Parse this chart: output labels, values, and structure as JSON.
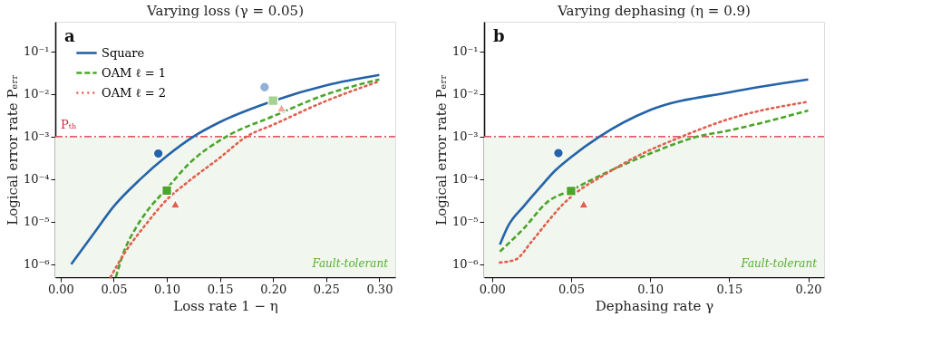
{
  "chart_data": [
    {
      "type": "line",
      "title": "Varying loss  (γ = 0.05)",
      "xlabel": "Loss rate 1 − η",
      "ylabel": "Logical error rate Pₑᵣᵣ",
      "log": "y",
      "grid": false,
      "legend": "top left",
      "xlim": [
        -0.005,
        0.315
      ],
      "xticks": [
        {
          "value": 0,
          "label": "0.00"
        },
        {
          "value": 0.05,
          "label": "0.05"
        },
        {
          "value": 0.1,
          "label": "0.10"
        },
        {
          "value": 0.15,
          "label": "0.15"
        },
        {
          "value": 0.2,
          "label": "0.20"
        },
        {
          "value": 0.25,
          "label": "0.25"
        },
        {
          "value": 0.3,
          "label": "0.30"
        }
      ],
      "ylim": [
        5e-07,
        0.5
      ],
      "yticks": [
        {
          "value": 1e-06,
          "label": "10⁻⁶"
        },
        {
          "value": 1e-05,
          "label": "10⁻⁵"
        },
        {
          "value": 0.0001,
          "label": "10⁻⁴"
        },
        {
          "value": 0.001,
          "label": "10⁻³"
        },
        {
          "value": 0.01,
          "label": "10⁻²"
        },
        {
          "value": 0.1,
          "label": "10⁻¹"
        }
      ],
      "annotations": [
        "a"
      ],
      "ref_lines": [
        {
          "axis": "y",
          "value": 0.001,
          "label": "Pₜₕ",
          "color": "#d62839",
          "line_style": "dashdot"
        }
      ],
      "bands": [
        {
          "axis": "y",
          "from": 5e-07,
          "to": 0.001,
          "label": "Fault-tolerant",
          "color": "#f1f6ee"
        }
      ],
      "series": [
        {
          "name": "Square",
          "type": "line",
          "color": "#2463a8",
          "line_style": "solid",
          "x": [
            0.01,
            0.03,
            0.05,
            0.075,
            0.1,
            0.125,
            0.15,
            0.2,
            0.25,
            0.3
          ],
          "values": [
            1e-06,
            4.8e-06,
            2.3e-05,
            0.0001,
            0.00035,
            0.001,
            0.0022,
            0.0069,
            0.016,
            0.028
          ]
        },
        {
          "name": "OAM ℓ = 1",
          "type": "line",
          "color": "#4aa52a",
          "line_style": "dashed",
          "x": [
            0.052,
            0.06,
            0.07,
            0.08,
            0.1,
            0.12,
            0.156,
            0.2,
            0.25,
            0.3
          ],
          "values": [
            5e-07,
            2.1e-06,
            6.6e-06,
            1.6e-05,
            6e-05,
            0.00022,
            0.001,
            0.003,
            0.0098,
            0.022
          ]
        },
        {
          "name": "OAM ℓ = 2",
          "type": "line",
          "color": "#e0604f",
          "line_style": "dotted",
          "x": [
            0.047,
            0.06,
            0.08,
            0.1,
            0.12,
            0.15,
            0.175,
            0.2,
            0.25,
            0.3
          ],
          "values": [
            5e-07,
            1.8e-06,
            8.5e-06,
            3.3e-05,
            8.7e-05,
            0.00032,
            0.001,
            0.0019,
            0.0069,
            0.02
          ]
        },
        {
          "type": "scatter",
          "marker": "circle",
          "color": "#2463a8",
          "x": [
            0.092
          ],
          "values": [
            0.0004
          ]
        },
        {
          "type": "scatter",
          "marker": "square",
          "color": "#4aa52a",
          "x": [
            0.1
          ],
          "values": [
            5.4e-05
          ]
        },
        {
          "type": "scatter",
          "marker": "triangle",
          "color": "#e0604f",
          "x": [
            0.108
          ],
          "values": [
            2.6e-05
          ]
        },
        {
          "type": "scatter",
          "marker": "circle",
          "color": "#8fb0d8",
          "x": [
            0.192
          ],
          "values": [
            0.0145
          ]
        },
        {
          "type": "scatter",
          "marker": "square",
          "color": "#a3d38f",
          "x": [
            0.2
          ],
          "values": [
            0.007
          ]
        },
        {
          "type": "scatter",
          "marker": "triangle",
          "color": "#eea59a",
          "x": [
            0.208
          ],
          "values": [
            0.0047
          ]
        }
      ]
    },
    {
      "type": "line",
      "title": "Varying dephasing  (η = 0.9)",
      "xlabel": "Dephasing rate γ",
      "ylabel": "Logical error rate Pₑᵣᵣ",
      "log": "y",
      "grid": false,
      "xlim": [
        -0.005,
        0.21
      ],
      "xticks": [
        {
          "value": 0,
          "label": "0.00"
        },
        {
          "value": 0.05,
          "label": "0.05"
        },
        {
          "value": 0.1,
          "label": "0.10"
        },
        {
          "value": 0.15,
          "label": "0.15"
        },
        {
          "value": 0.2,
          "label": "0.20"
        }
      ],
      "ylim": [
        5e-07,
        0.5
      ],
      "yticks": [
        {
          "value": 1e-06,
          "label": "10⁻⁶"
        },
        {
          "value": 1e-05,
          "label": "10⁻⁵"
        },
        {
          "value": 0.0001,
          "label": "10⁻⁴"
        },
        {
          "value": 0.001,
          "label": "10⁻³"
        },
        {
          "value": 0.01,
          "label": "10⁻²"
        },
        {
          "value": 0.1,
          "label": "10⁻¹"
        }
      ],
      "annotations": [
        "b"
      ],
      "ref_lines": [
        {
          "axis": "y",
          "value": 0.001,
          "color": "#d62839",
          "line_style": "dashdot"
        }
      ],
      "bands": [
        {
          "axis": "y",
          "from": 5e-07,
          "to": 0.001,
          "label": "Fault-tolerant",
          "color": "#f1f6ee"
        }
      ],
      "series": [
        {
          "type": "line",
          "color": "#2463a8",
          "line_style": "solid",
          "x": [
            0.005,
            0.01,
            0.02,
            0.03,
            0.04,
            0.05,
            0.068,
            0.1,
            0.15,
            0.2
          ],
          "values": [
            2.9e-06,
            7.7e-06,
            2.3e-05,
            6.2e-05,
            0.00016,
            0.00033,
            0.001,
            0.0042,
            0.011,
            0.022
          ]
        },
        {
          "type": "line",
          "color": "#4aa52a",
          "line_style": "dashed",
          "x": [
            0.005,
            0.02,
            0.035,
            0.05,
            0.07,
            0.1,
            0.13,
            0.15,
            0.2
          ],
          "values": [
            2e-06,
            6.9e-06,
            2.9e-05,
            5.5e-05,
            0.00013,
            0.0004,
            0.001,
            0.0014,
            0.0041
          ]
        },
        {
          "type": "line",
          "color": "#e0604f",
          "line_style": "dotted",
          "x": [
            0.005,
            0.015,
            0.025,
            0.035,
            0.045,
            0.055,
            0.07,
            0.09,
            0.12,
            0.15,
            0.2
          ],
          "values": [
            1.1e-06,
            1.3e-06,
            3.4e-06,
            9.8e-06,
            2.6e-05,
            5.4e-05,
            0.00012,
            0.00032,
            0.001,
            0.0026,
            0.0066
          ]
        },
        {
          "type": "scatter",
          "marker": "circle",
          "color": "#2463a8",
          "x": [
            0.042
          ],
          "values": [
            0.00041
          ]
        },
        {
          "type": "scatter",
          "marker": "square",
          "color": "#4aa52a",
          "x": [
            0.05
          ],
          "values": [
            5.3e-05
          ]
        },
        {
          "type": "scatter",
          "marker": "triangle",
          "color": "#e0604f",
          "x": [
            0.058
          ],
          "values": [
            2.6e-05
          ]
        }
      ]
    }
  ]
}
